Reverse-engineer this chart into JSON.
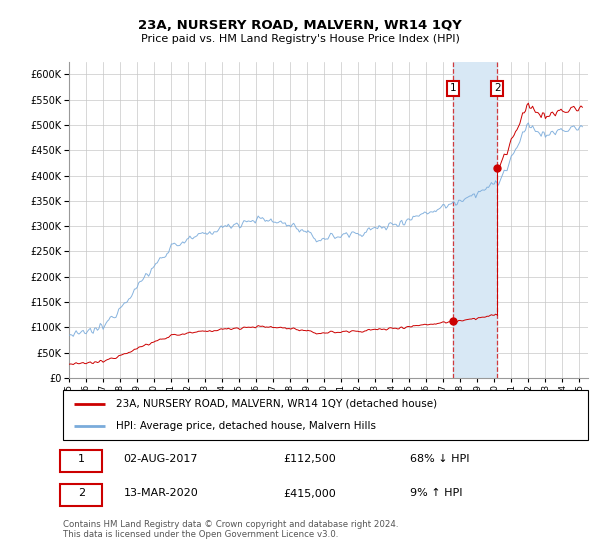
{
  "title1": "23A, NURSERY ROAD, MALVERN, WR14 1QY",
  "title2": "Price paid vs. HM Land Registry's House Price Index (HPI)",
  "legend_red": "23A, NURSERY ROAD, MALVERN, WR14 1QY (detached house)",
  "legend_blue": "HPI: Average price, detached house, Malvern Hills",
  "transaction1_date": "02-AUG-2017",
  "transaction1_price": 112500,
  "transaction1_label": "68% ↓ HPI",
  "transaction2_date": "13-MAR-2020",
  "transaction2_price": 415000,
  "transaction2_label": "9% ↑ HPI",
  "footnote": "Contains HM Land Registry data © Crown copyright and database right 2024.\nThis data is licensed under the Open Government Licence v3.0.",
  "hpi_color": "#7aabdb",
  "property_color": "#cc0000",
  "highlight_color": "#d8e8f5",
  "ylim_max": 620000,
  "ylim_min": 0
}
